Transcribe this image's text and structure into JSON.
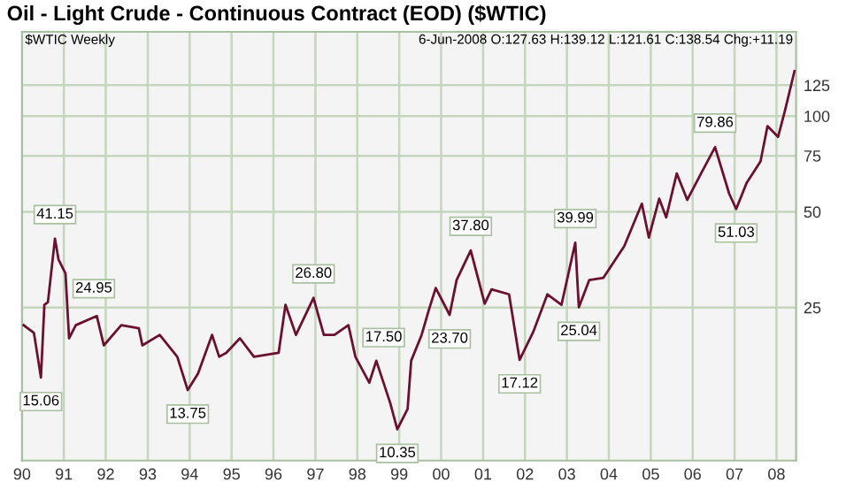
{
  "chart_data": {
    "type": "line",
    "title": "Oil - Light Crude - Continuous Contract (EOD) ($WTIC)",
    "annotations": [
      "$WTIC Weekly",
      "6-Jun-2008 O:127.63 H:139.12 L:121.61 C:138.54 Chg:+11.19",
      {
        "text": "15.06",
        "x": "1990-06",
        "y": 15.06
      },
      {
        "text": "41.15",
        "x": "1990-10",
        "y": 41.15
      },
      {
        "text": "24.95",
        "x": "1991-01",
        "y": 24.95
      },
      {
        "text": "13.75",
        "x": "1993-12",
        "y": 13.75
      },
      {
        "text": "26.80",
        "x": "1996-12",
        "y": 26.8
      },
      {
        "text": "17.50",
        "x": "1997-12",
        "y": 17.5
      },
      {
        "text": "10.35",
        "x": "1998-12",
        "y": 10.35
      },
      {
        "text": "23.70",
        "x": "2000-03",
        "y": 23.7
      },
      {
        "text": "37.80",
        "x": "2000-09",
        "y": 37.8
      },
      {
        "text": "17.12",
        "x": "2001-11",
        "y": 17.12
      },
      {
        "text": "39.99",
        "x": "2003-03",
        "y": 39.99
      },
      {
        "text": "25.04",
        "x": "2003-04",
        "y": 25.04
      },
      {
        "text": "79.86",
        "x": "2006-07",
        "y": 79.86
      },
      {
        "text": "51.03",
        "x": "2007-01",
        "y": 51.03
      }
    ],
    "x": [
      "1990-01",
      "1990-04",
      "1990-06",
      "1990-07",
      "1990-08",
      "1990-10",
      "1990-11",
      "1991-01",
      "1991-02",
      "1991-04",
      "1991-10",
      "1991-12",
      "1992-05",
      "1992-10",
      "1992-11",
      "1993-04",
      "1993-09",
      "1993-12",
      "1994-03",
      "1994-07",
      "1994-09",
      "1994-11",
      "1995-03",
      "1995-07",
      "1996-02",
      "1996-04",
      "1996-07",
      "1996-12",
      "1997-03",
      "1997-06",
      "1997-10",
      "1997-12",
      "1998-04",
      "1998-06",
      "1998-10",
      "1998-12",
      "1999-03",
      "1999-04",
      "1999-07",
      "1999-09",
      "1999-11",
      "2000-03",
      "2000-05",
      "2000-09",
      "2001-01",
      "2001-03",
      "2001-08",
      "2001-11",
      "2002-03",
      "2002-07",
      "2002-11",
      "2003-03",
      "2003-04",
      "2003-07",
      "2003-11",
      "2004-05",
      "2004-10",
      "2004-12",
      "2005-03",
      "2005-05",
      "2005-08",
      "2005-11",
      "2006-03",
      "2006-07",
      "2006-11",
      "2007-01",
      "2007-04",
      "2007-08",
      "2007-10",
      "2008-01",
      "2008-03",
      "2008-06-06"
    ],
    "series": [
      {
        "color": "#6b1030",
        "values": [
          22,
          20.8,
          15.06,
          25.5,
          26,
          41.15,
          35.4,
          32,
          20,
          22,
          23.5,
          19,
          22,
          21.5,
          19,
          20.5,
          17.5,
          13.75,
          15.5,
          20.5,
          17.5,
          18,
          20,
          17.5,
          18,
          25.5,
          20.5,
          26.8,
          20.5,
          20.5,
          22,
          17.5,
          14.5,
          17,
          12.5,
          10.35,
          12,
          17,
          20.5,
          24.5,
          28.8,
          23.7,
          30.5,
          37.8,
          25.7,
          28.5,
          27.5,
          17.12,
          21,
          27.5,
          25.5,
          39.99,
          25.04,
          30.5,
          31,
          39,
          53,
          41.5,
          55,
          48,
          66,
          54.5,
          66,
          79.86,
          57,
          51.03,
          61.5,
          72,
          93,
          86,
          104,
          138.54
        ]
      }
    ],
    "log": true,
    "xlim": [
      "1990-01-01",
      "2008-06-20"
    ],
    "xticks": [
      {
        "value": "1990-01-01",
        "label": "90"
      },
      {
        "value": "1991-01-01",
        "label": "91"
      },
      {
        "value": "1992-01-01",
        "label": "92"
      },
      {
        "value": "1993-01-01",
        "label": "93"
      },
      {
        "value": "1994-01-01",
        "label": "94"
      },
      {
        "value": "1995-01-01",
        "label": "95"
      },
      {
        "value": "1996-01-01",
        "label": "96"
      },
      {
        "value": "1997-01-01",
        "label": "97"
      },
      {
        "value": "1998-01-01",
        "label": "98"
      },
      {
        "value": "1999-01-01",
        "label": "99"
      },
      {
        "value": "2000-01-01",
        "label": "00"
      },
      {
        "value": "2001-01-01",
        "label": "01"
      },
      {
        "value": "2002-01-01",
        "label": "02"
      },
      {
        "value": "2003-01-01",
        "label": "03"
      },
      {
        "value": "2004-01-01",
        "label": "04"
      },
      {
        "value": "2005-01-01",
        "label": "05"
      },
      {
        "value": "2006-01-01",
        "label": "06"
      },
      {
        "value": "2007-01-01",
        "label": "07"
      },
      {
        "value": "2008-01-01",
        "label": "08"
      }
    ],
    "ylim": [
      8.25,
      184
    ],
    "yticks": [
      25,
      50,
      75,
      100,
      125
    ],
    "grid": true,
    "line_style": "solid"
  }
}
